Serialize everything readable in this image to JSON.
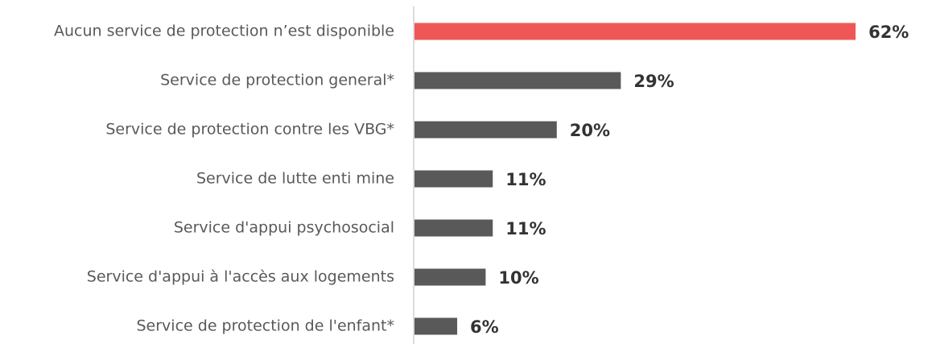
{
  "chart_data": {
    "type": "bar",
    "orientation": "horizontal",
    "categories": [
      "Aucun service de protection n’est disponible",
      "Service de protection general*",
      "Service de protection contre les VBG*",
      "Service de lutte enti mine",
      "Service d'appui psychosocial",
      "Service d'appui à l'accès aux logements",
      "Service de protection de l'enfant*"
    ],
    "values": [
      62,
      29,
      20,
      11,
      11,
      10,
      6
    ],
    "value_labels": [
      "62%",
      "29%",
      "20%",
      "11%",
      "11%",
      "10%",
      "6%"
    ],
    "colors": [
      "#ef5757",
      "#595959",
      "#595959",
      "#595959",
      "#595959",
      "#595959",
      "#595959"
    ]
  }
}
